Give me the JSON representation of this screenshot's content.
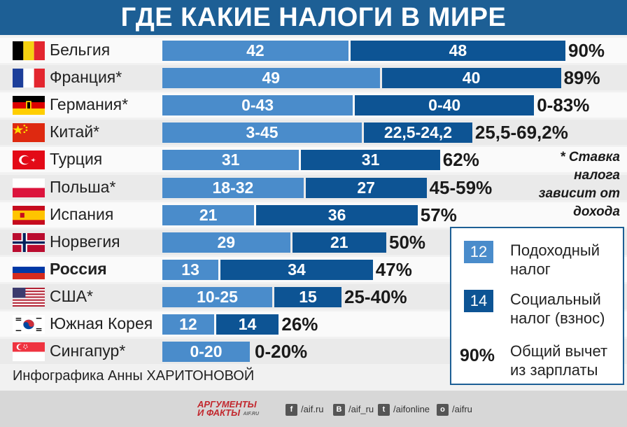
{
  "header": {
    "title": "ГДЕ КАКИЕ НАЛОГИ В МИРЕ"
  },
  "chart_data": {
    "type": "bar",
    "stacked": true,
    "orientation": "horizontal",
    "title": "ГДЕ КАКИЕ НАЛОГИ В МИРЕ",
    "categories": [
      "Бельгия",
      "Франция*",
      "Германия*",
      "Китай*",
      "Турция",
      "Польша*",
      "Испания",
      "Норвегия",
      "Россия",
      "США*",
      "Южная Корея",
      "Сингапур*"
    ],
    "series": [
      {
        "name": "Подоходный налог",
        "color": "#4a8ccb",
        "values": [
          42,
          49,
          43,
          45,
          31,
          32,
          21,
          29,
          13,
          25,
          12,
          20
        ],
        "labels": [
          "42",
          "49",
          "0-43",
          "3-45",
          "31",
          "18-32",
          "21",
          "29",
          "13",
          "10-25",
          "12",
          "0-20"
        ]
      },
      {
        "name": "Социальный налог (взнос)",
        "color": "#0d5494",
        "values": [
          48,
          40,
          40,
          24.2,
          31,
          27,
          36,
          21,
          34,
          15,
          14,
          0
        ],
        "labels": [
          "48",
          "40",
          "0-40",
          "22,5-24,2",
          "31",
          "27",
          "36",
          "21",
          "34",
          "15",
          "14",
          ""
        ]
      }
    ],
    "totals": [
      "90%",
      "89%",
      "0-83%",
      "25,5-69,2%",
      "62%",
      "45-59%",
      "57%",
      "50%",
      "47%",
      "25-40%",
      "26%",
      "0-20%"
    ],
    "highlight": "Россия"
  },
  "note": "* Ставка налога зависит от дохода",
  "legend": {
    "income_sample": "12",
    "income_label": "Подоходный\nналог",
    "social_sample": "14",
    "social_label": "Социальный\nналог (взнос)",
    "total_sample": "90%",
    "total_label": "Общий вычет\nиз зарплаты"
  },
  "credit": "Инфографика Анны ХАРИТОНОВОЙ",
  "footer": {
    "logo_line1": "АРГУМЕНТЫ",
    "logo_line2": "И ФАКТЫ",
    "logo_site": "AIF.RU",
    "links": [
      {
        "icon": "facebook-icon",
        "glyph": "f",
        "text": "/aif.ru"
      },
      {
        "icon": "vk-icon",
        "glyph": "B",
        "text": "/aif_ru"
      },
      {
        "icon": "twitter-icon",
        "glyph": "t",
        "text": "/aifonline"
      },
      {
        "icon": "odnoklassniki-icon",
        "glyph": "o",
        "text": "/aifru"
      }
    ]
  },
  "flags": [
    "belgium-flag-icon",
    "france-flag-icon",
    "germany-flag-icon",
    "china-flag-icon",
    "turkey-flag-icon",
    "poland-flag-icon",
    "spain-flag-icon",
    "norway-flag-icon",
    "russia-flag-icon",
    "usa-flag-icon",
    "south-korea-flag-icon",
    "singapore-flag-icon"
  ]
}
